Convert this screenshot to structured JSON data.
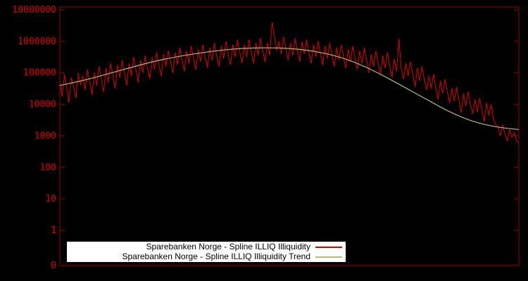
{
  "chart_data": {
    "type": "line",
    "title": "",
    "xlabel": "",
    "ylabel": "",
    "y_scale": "log10",
    "ylim_log10": [
      0,
      7
    ],
    "yticks": [
      "10000000",
      "1000000",
      "100000",
      "10000",
      "1000",
      "100",
      "10",
      "1",
      "0"
    ],
    "grid": false,
    "legend_position": "bottom-center",
    "background": "#000000",
    "axis_color": "#990000",
    "tick_label_color": "#dd0000",
    "series": [
      {
        "name": "Sparebanken Norge - Spline ILLIQ Illiquidity",
        "color": "#dd0000",
        "smooth": false,
        "log10_values": [
          4.7,
          4.25,
          4.95,
          4.5,
          4.05,
          4.85,
          4.55,
          4.2,
          5.0,
          4.6,
          4.9,
          4.45,
          5.1,
          4.7,
          4.3,
          5.0,
          4.6,
          5.2,
          4.8,
          4.4,
          5.15,
          4.7,
          5.3,
          4.9,
          4.5,
          5.25,
          4.85,
          5.4,
          5.0,
          4.6,
          5.3,
          4.9,
          5.5,
          5.1,
          4.7,
          5.4,
          5.0,
          5.55,
          5.15,
          4.8,
          5.5,
          5.1,
          5.65,
          5.25,
          4.9,
          5.6,
          5.2,
          5.7,
          5.35,
          5.0,
          5.65,
          5.25,
          5.8,
          5.4,
          5.05,
          5.7,
          5.3,
          5.85,
          5.45,
          5.1,
          5.75,
          5.35,
          5.9,
          5.5,
          5.15,
          5.8,
          5.4,
          5.95,
          5.55,
          5.2,
          5.85,
          5.45,
          6.0,
          5.6,
          5.25,
          5.9,
          5.5,
          6.05,
          5.65,
          5.3,
          5.9,
          5.5,
          6.05,
          5.65,
          5.3,
          5.95,
          5.55,
          6.1,
          5.7,
          5.35,
          5.95,
          5.55,
          6.6,
          6.2,
          5.7,
          6.0,
          5.6,
          6.15,
          5.75,
          5.4,
          5.95,
          5.55,
          6.1,
          5.7,
          5.35,
          6.0,
          5.6,
          6.05,
          5.65,
          5.3,
          5.9,
          5.5,
          6.0,
          5.6,
          5.25,
          5.85,
          5.45,
          5.95,
          5.55,
          5.2,
          5.8,
          5.4,
          5.9,
          5.5,
          5.15,
          5.75,
          5.35,
          5.85,
          5.45,
          5.1,
          5.7,
          5.3,
          5.8,
          5.4,
          5.0,
          5.6,
          5.2,
          5.7,
          5.3,
          4.95,
          5.55,
          5.15,
          5.65,
          5.25,
          4.85,
          5.45,
          5.05,
          6.08,
          5.15,
          4.8,
          5.3,
          4.9,
          5.35,
          4.95,
          4.55,
          5.15,
          4.75,
          5.2,
          4.8,
          4.45,
          4.9,
          4.5,
          4.95,
          4.55,
          4.15,
          4.75,
          4.35,
          4.8,
          4.4,
          4.05,
          4.5,
          4.1,
          4.55,
          4.15,
          3.75,
          4.35,
          3.95,
          4.4,
          4.0,
          3.7,
          4.15,
          3.75,
          4.2,
          3.8,
          3.45,
          4.05,
          3.65,
          4.0,
          3.55,
          3.35,
          3.3,
          3.0,
          3.35,
          3.05,
          2.85,
          3.2,
          2.95,
          3.1,
          2.85,
          2.78
        ]
      },
      {
        "name": "Sparebanken Norge - Spline ILLIQ Illiquidity Trend",
        "color": "#bdb76b",
        "smooth": true,
        "log10_values": [
          4.6,
          4.75,
          4.95,
          5.15,
          5.35,
          5.5,
          5.62,
          5.72,
          5.78,
          5.8,
          5.78,
          5.7,
          5.55,
          5.3,
          4.95,
          4.55,
          4.15,
          3.75,
          3.45,
          3.28,
          3.2
        ]
      }
    ]
  }
}
